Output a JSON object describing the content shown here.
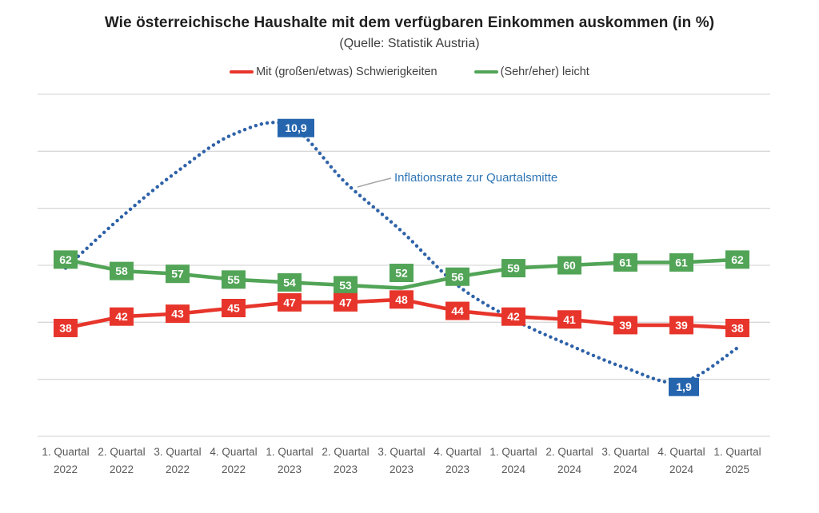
{
  "header": {
    "title": "Wie österreichische Haushalte mit dem verfügbaren Einkommen auskommen (in %)",
    "subtitle": "(Quelle: Statistik Austria)"
  },
  "legend": {
    "items": [
      {
        "label": "Mit (großen/etwas) Schwierigkeiten",
        "color": "#e7352b"
      },
      {
        "label": "(Sehr/eher) leicht",
        "color": "#52a457"
      }
    ]
  },
  "annotation": {
    "text": "Inflationsrate zur Quartalsmitte",
    "color": "#2e74b5",
    "leader_color": "#a6a6a6"
  },
  "colors": {
    "gridline": "#d9d9d9",
    "axis_text": "#595959",
    "title_text": "#1f1f1f",
    "label_text_on_box": "#ffffff"
  },
  "chart_data": {
    "type": "line",
    "title": "Wie österreichische Haushalte mit dem verfügbaren Einkommen auskommen (in %)",
    "subtitle": "(Quelle: Statistik Austria)",
    "categories": [
      "1. Quartal 2022",
      "2. Quartal 2022",
      "3. Quartal 2022",
      "4. Quartal 2022",
      "1. Quartal 2023",
      "2. Quartal 2023",
      "3. Quartal 2023",
      "4. Quartal 2023",
      "1. Quartal 2024",
      "2. Quartal 2024",
      "3. Quartal 2024",
      "4. Quartal 2024",
      "1. Quartal 2025"
    ],
    "categories_two_line": [
      [
        "1. Quartal",
        "2022"
      ],
      [
        "2. Quartal",
        "2022"
      ],
      [
        "3. Quartal",
        "2022"
      ],
      [
        "4. Quartal",
        "2022"
      ],
      [
        "1. Quartal",
        "2023"
      ],
      [
        "2. Quartal",
        "2023"
      ],
      [
        "3. Quartal",
        "2023"
      ],
      [
        "4. Quartal",
        "2023"
      ],
      [
        "1. Quartal",
        "2024"
      ],
      [
        "2. Quartal",
        "2024"
      ],
      [
        "3. Quartal",
        "2024"
      ],
      [
        "4. Quartal",
        "2024"
      ],
      [
        "1. Quartal",
        "2025"
      ]
    ],
    "series": [
      {
        "id": "inflation",
        "name": "Inflationsrate zur Quartalsmitte",
        "color": "#2e62a8",
        "label_box_color": "#2565ae",
        "axis": "inflation",
        "line_style": "dotted",
        "smooth": true,
        "values": [
          5.9,
          7.7,
          9.3,
          10.6,
          10.9,
          8.9,
          7.2,
          5.3,
          4.1,
          3.2,
          2.4,
          1.9,
          3.1
        ],
        "labeled_points": [
          {
            "index": 4,
            "label": "10,9",
            "value": 10.9,
            "position": "above"
          },
          {
            "index": 11,
            "label": "1,9",
            "value": 1.9,
            "position": "below"
          }
        ]
      },
      {
        "id": "easy",
        "name": "(Sehr/eher) leicht",
        "color": "#52a457",
        "axis": "percent",
        "line_style": "solid",
        "values": [
          62,
          58,
          57,
          55,
          54,
          53,
          52,
          56,
          59,
          60,
          61,
          61,
          62
        ],
        "point_labels": "all",
        "label_y_offsets": {
          "6": -19
        }
      },
      {
        "id": "difficulties",
        "name": "Mit (großen/etwas) Schwierigkeiten",
        "color": "#e7352b",
        "axis": "percent",
        "line_style": "solid",
        "values": [
          38,
          42,
          43,
          45,
          47,
          47,
          48,
          44,
          42,
          41,
          39,
          39,
          38
        ],
        "point_labels": "all",
        "label_y_offsets": {}
      }
    ],
    "axes": {
      "x": {
        "tick_labels_visible": true
      },
      "percent": {
        "tick_labels_visible": false,
        "values_shown_range": [
          38,
          62
        ]
      },
      "inflation": {
        "tick_labels_visible": false,
        "grid_min": 0,
        "grid_max": 12,
        "grid_step": 2
      }
    },
    "grid": {
      "visible": true,
      "horizontal_lines": 7,
      "color": "#d9d9d9"
    },
    "legend_position": "top"
  }
}
